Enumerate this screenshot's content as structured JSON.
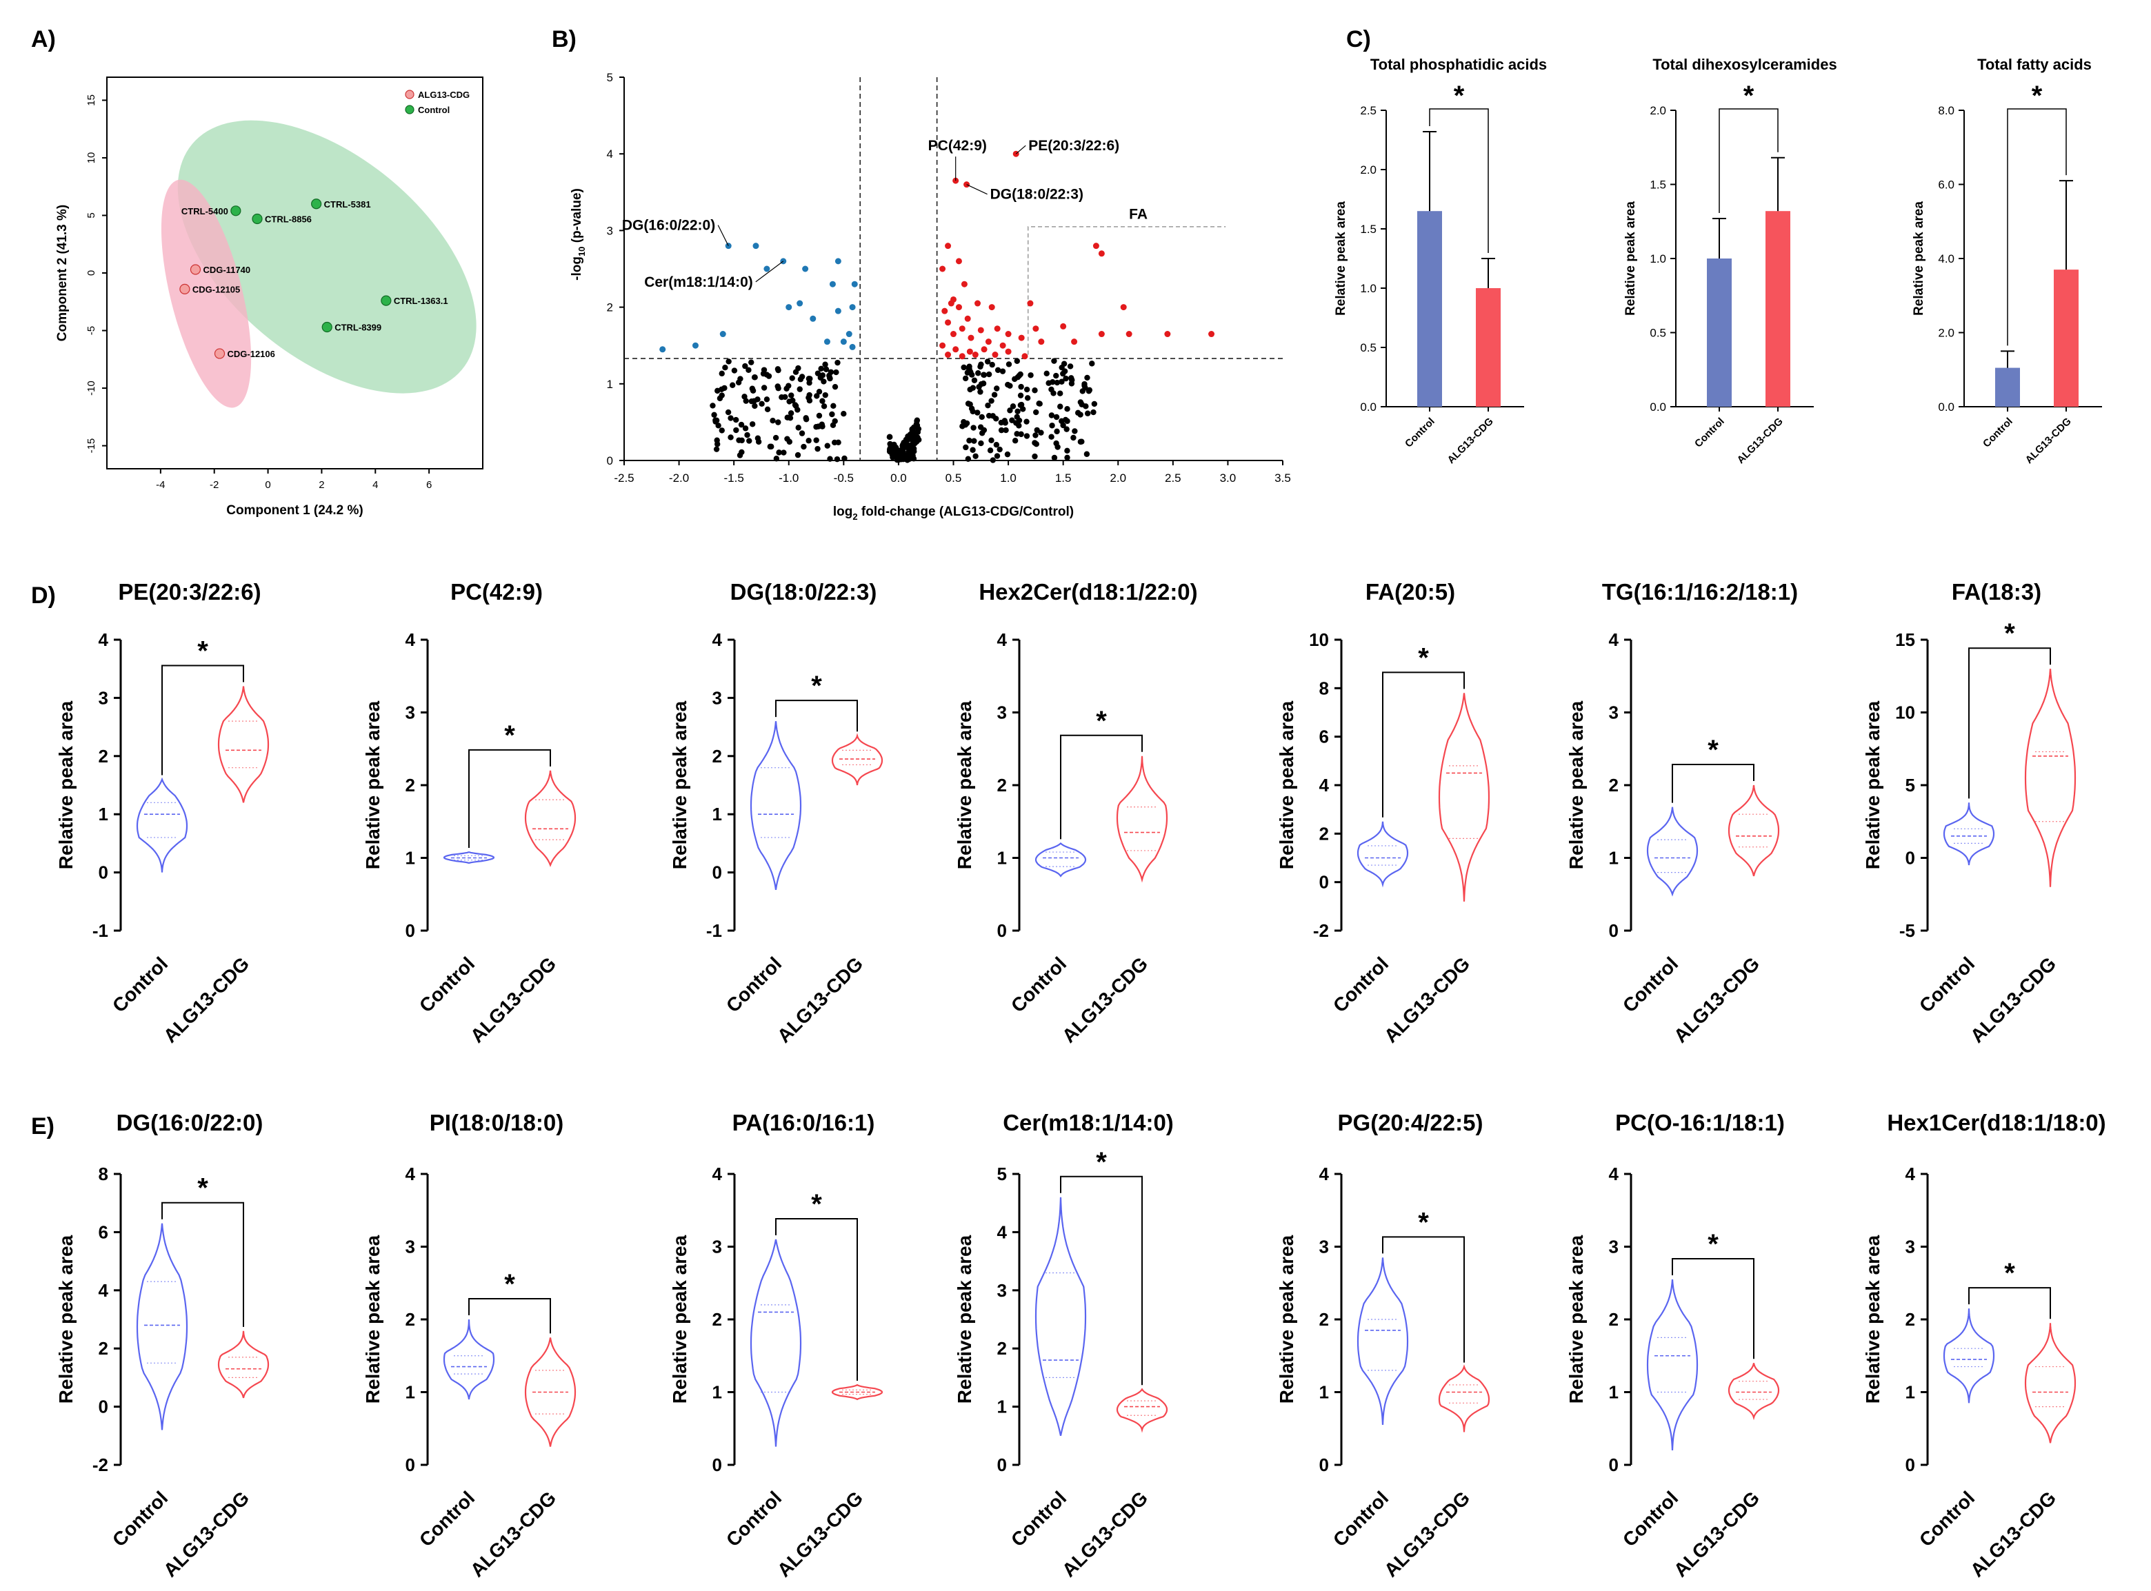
{
  "panels": {
    "A": "A)",
    "B": "B)",
    "C": "C)",
    "D": "D)",
    "E": "E)"
  },
  "colors": {
    "control": "#5a65f0",
    "alg13": "#f5474f",
    "bar_control": "#6a7dc0",
    "bar_alg13": "#f6545c",
    "pca_control_fill": "#a8dcb6",
    "pca_alg13_fill": "#f6b3c4",
    "vol_up": "#e31a1c",
    "vol_down": "#1f78b4"
  },
  "chart_data": [
    {
      "id": "pca",
      "type": "scatter",
      "xlabel": "Component 1 (24.2 %)",
      "ylabel": "Component 2 (41.3 %)",
      "xlim": [
        -6,
        8
      ],
      "ylim": [
        -17,
        17
      ],
      "xticks": [
        "-4",
        "-2",
        "0",
        "2",
        "4",
        "6"
      ],
      "yticks": [
        "15",
        "10",
        "5",
        "0",
        "-5",
        "-10",
        "-15"
      ],
      "legend": [
        "ALG13-CDG",
        "Control"
      ],
      "points": [
        {
          "label": "CTRL-5400",
          "x": -1.2,
          "y": 5.4,
          "group": "Control"
        },
        {
          "label": "CTRL-8856",
          "x": -0.4,
          "y": 4.7,
          "group": "Control"
        },
        {
          "label": "CTRL-5381",
          "x": 1.8,
          "y": 6.0,
          "group": "Control"
        },
        {
          "label": "CTRL-1363.1",
          "x": 4.4,
          "y": -2.4,
          "group": "Control"
        },
        {
          "label": "CTRL-8399",
          "x": 2.2,
          "y": -4.7,
          "group": "Control"
        },
        {
          "label": "CDG-11740",
          "x": -2.7,
          "y": 0.3,
          "group": "ALG13-CDG"
        },
        {
          "label": "CDG-12105",
          "x": -3.1,
          "y": -1.4,
          "group": "ALG13-CDG"
        },
        {
          "label": "CDG-12106",
          "x": -1.8,
          "y": -7.0,
          "group": "ALG13-CDG"
        }
      ]
    },
    {
      "id": "volcano",
      "type": "scatter",
      "xlabel": "log2 fold-change (ALG13-CDG/Control)",
      "ylabel": "-log10 (p-value)",
      "xlabel_main": "log",
      "xlabel_sub": "2",
      "xlabel_rest": " fold-change (ALG13-CDG/Control)",
      "ylabel_pre": "-log",
      "ylabel_sub": "10",
      "ylabel_rest": " (p-value)",
      "xlim": [
        -2.5,
        3.5
      ],
      "ylim": [
        0,
        5
      ],
      "xticks": [
        "-2.5",
        "-2.0",
        "-1.5",
        "-1.0",
        "-0.5",
        "0.0",
        "0.5",
        "1.0",
        "1.5",
        "2.0",
        "2.5",
        "3.0",
        "3.5"
      ],
      "yticks": [
        "0",
        "1",
        "2",
        "3",
        "4",
        "5"
      ],
      "thresholds": {
        "x": [
          -0.35,
          0.35
        ],
        "y": 1.33
      },
      "fa_box_label": "FA",
      "labels": [
        {
          "text": "PE(20:3/22:6)",
          "x": 1.07,
          "y": 4.0
        },
        {
          "text": "PC(42:9)",
          "x": 0.52,
          "y": 3.65
        },
        {
          "text": "DG(18:0/22:3)",
          "x": 0.62,
          "y": 3.6
        },
        {
          "text": "DG(16:0/22:0)",
          "x": -1.55,
          "y": 2.8
        },
        {
          "text": "Cer(m18:1/14:0)",
          "x": -1.05,
          "y": 2.6
        }
      ],
      "up_points": [
        [
          1.07,
          4.0
        ],
        [
          0.52,
          3.65
        ],
        [
          0.62,
          3.6
        ],
        [
          1.8,
          2.8
        ],
        [
          1.85,
          2.7
        ],
        [
          0.45,
          2.8
        ],
        [
          0.55,
          2.6
        ],
        [
          0.6,
          2.3
        ],
        [
          0.4,
          2.5
        ],
        [
          0.5,
          2.1
        ],
        [
          0.42,
          1.95
        ],
        [
          0.48,
          2.05
        ],
        [
          0.55,
          2.0
        ],
        [
          0.63,
          1.85
        ],
        [
          0.72,
          2.05
        ],
        [
          0.85,
          2.0
        ],
        [
          1.2,
          2.05
        ],
        [
          0.45,
          1.8
        ],
        [
          0.5,
          1.65
        ],
        [
          0.58,
          1.72
        ],
        [
          0.66,
          1.6
        ],
        [
          0.75,
          1.7
        ],
        [
          0.82,
          1.55
        ],
        [
          0.9,
          1.72
        ],
        [
          1.0,
          1.65
        ],
        [
          0.95,
          1.5
        ],
        [
          1.12,
          1.6
        ],
        [
          1.25,
          1.72
        ],
        [
          1.3,
          1.55
        ],
        [
          1.5,
          1.75
        ],
        [
          1.6,
          1.55
        ],
        [
          2.1,
          1.65
        ],
        [
          2.45,
          1.65
        ],
        [
          2.85,
          1.65
        ],
        [
          1.85,
          1.65
        ],
        [
          0.4,
          1.5
        ],
        [
          0.52,
          1.45
        ],
        [
          0.65,
          1.42
        ],
        [
          0.78,
          1.45
        ],
        [
          1.0,
          1.42
        ],
        [
          0.88,
          1.38
        ],
        [
          0.45,
          1.38
        ],
        [
          0.58,
          1.36
        ],
        [
          0.7,
          1.38
        ],
        [
          1.15,
          1.36
        ],
        [
          2.05,
          2.0
        ]
      ],
      "down_points": [
        [
          -1.55,
          2.8
        ],
        [
          -1.3,
          2.8
        ],
        [
          -1.05,
          2.6
        ],
        [
          -0.55,
          2.6
        ],
        [
          -1.2,
          2.5
        ],
        [
          -0.6,
          2.3
        ],
        [
          -0.85,
          2.5
        ],
        [
          -0.4,
          2.3
        ],
        [
          -0.9,
          2.05
        ],
        [
          -1.0,
          2.0
        ],
        [
          -0.55,
          1.95
        ],
        [
          -0.42,
          2.0
        ],
        [
          -0.78,
          1.85
        ],
        [
          -0.45,
          1.65
        ],
        [
          -1.6,
          1.65
        ],
        [
          -0.5,
          1.55
        ],
        [
          -2.15,
          1.45
        ],
        [
          -1.85,
          1.5
        ],
        [
          -0.65,
          1.55
        ],
        [
          -0.42,
          1.48
        ]
      ]
    },
    {
      "id": "bars",
      "type": "bar",
      "categories": [
        "Control",
        "ALG13-CDG"
      ],
      "ylabel": "Relative peak area",
      "charts": [
        {
          "title": "Total phosphatidic acids",
          "values": [
            1.65,
            1.0
          ],
          "errors": [
            0.67,
            0.25
          ],
          "ylim": [
            0,
            2.5
          ],
          "yticks": [
            "0.0",
            "0.5",
            "1.0",
            "1.5",
            "2.0",
            "2.5"
          ],
          "sig": "*"
        },
        {
          "title": "Total dihexosylceramides",
          "values": [
            1.0,
            1.32
          ],
          "errors": [
            0.27,
            0.36
          ],
          "ylim": [
            0,
            2.0
          ],
          "yticks": [
            "0.0",
            "0.5",
            "1.0",
            "1.5",
            "2.0"
          ],
          "sig": "*"
        },
        {
          "title": "Total fatty acids",
          "values": [
            1.05,
            3.7
          ],
          "errors": [
            0.45,
            2.4
          ],
          "ylim": [
            0,
            8.0
          ],
          "yticks": [
            "0.0",
            "2.0",
            "4.0",
            "6.0",
            "8.0"
          ],
          "sig": "*"
        }
      ]
    },
    {
      "id": "violins",
      "type": "violin",
      "categories": [
        "Control",
        "ALG13-CDG"
      ],
      "ylabel": "Relative peak area",
      "rows": [
        [
          {
            "title": "PE(20:3/22:6)",
            "ylim": [
              -1,
              4
            ],
            "yticks": [
              "-1",
              "0",
              "1",
              "2",
              "3",
              "4"
            ],
            "sig": "*",
            "ctrl": {
              "min": 0.0,
              "max": 1.6,
              "median": 1.0,
              "q1": 0.6,
              "q3": 1.2
            },
            "alg": {
              "min": 1.2,
              "max": 3.2,
              "median": 2.1,
              "q1": 1.8,
              "q3": 2.6
            }
          },
          {
            "title": "PC(42:9)",
            "ylim": [
              0,
              4
            ],
            "yticks": [
              "0",
              "1",
              "2",
              "3",
              "4"
            ],
            "sig": "*",
            "ctrl": {
              "min": 0.93,
              "max": 1.08,
              "median": 1.0,
              "q1": 0.97,
              "q3": 1.03
            },
            "alg": {
              "min": 0.9,
              "max": 2.2,
              "median": 1.4,
              "q1": 1.25,
              "q3": 1.8
            }
          },
          {
            "title": "DG(18:0/22:3)",
            "ylim": [
              -1,
              4
            ],
            "yticks": [
              "-1",
              "0",
              "1",
              "2",
              "3",
              "4"
            ],
            "sig": "*",
            "ctrl": {
              "min": -0.3,
              "max": 2.6,
              "median": 1.0,
              "q1": 0.6,
              "q3": 1.8
            },
            "alg": {
              "min": 1.5,
              "max": 2.35,
              "median": 1.95,
              "q1": 1.85,
              "q3": 2.1
            }
          },
          {
            "title": "Hex2Cer(d18:1/22:0)",
            "ylim": [
              0,
              4
            ],
            "yticks": [
              "0",
              "1",
              "2",
              "3",
              "4"
            ],
            "sig": "*",
            "ctrl": {
              "min": 0.75,
              "max": 1.2,
              "median": 1.0,
              "q1": 0.88,
              "q3": 1.08
            },
            "alg": {
              "min": 0.7,
              "max": 2.4,
              "median": 1.35,
              "q1": 1.1,
              "q3": 1.7
            }
          },
          {
            "title": "FA(20:5)",
            "ylim": [
              -2,
              10
            ],
            "yticks": [
              "-2",
              "0",
              "2",
              "4",
              "6",
              "8",
              "10"
            ],
            "sig": "*",
            "ctrl": {
              "min": -0.1,
              "max": 2.5,
              "median": 1.0,
              "q1": 0.7,
              "q3": 1.5
            },
            "alg": {
              "min": -0.8,
              "max": 7.8,
              "median": 4.5,
              "q1": 1.8,
              "q3": 4.8
            }
          },
          {
            "title": "TG(16:1/16:2/18:1)",
            "ylim": [
              0,
              4
            ],
            "yticks": [
              "0",
              "1",
              "2",
              "3",
              "4"
            ],
            "sig": "*",
            "ctrl": {
              "min": 0.5,
              "max": 1.7,
              "median": 1.0,
              "q1": 0.8,
              "q3": 1.25
            },
            "alg": {
              "min": 0.75,
              "max": 2.0,
              "median": 1.3,
              "q1": 1.15,
              "q3": 1.6
            }
          },
          {
            "title": "FA(18:3)",
            "ylim": [
              -5,
              15
            ],
            "yticks": [
              "-5",
              "0",
              "5",
              "10",
              "15"
            ],
            "sig": "*",
            "ctrl": {
              "min": -0.5,
              "max": 3.8,
              "median": 1.5,
              "q1": 1.0,
              "q3": 2.0
            },
            "alg": {
              "min": -2.0,
              "max": 13.0,
              "median": 7.0,
              "q1": 2.5,
              "q3": 7.3
            }
          }
        ],
        [
          {
            "title": "DG(16:0/22:0)",
            "ylim": [
              -2,
              8
            ],
            "yticks": [
              "-2",
              "0",
              "2",
              "4",
              "6",
              "8"
            ],
            "sig": "*",
            "ctrl": {
              "min": -0.8,
              "max": 6.3,
              "median": 2.8,
              "q1": 1.5,
              "q3": 4.3
            },
            "alg": {
              "min": 0.3,
              "max": 2.6,
              "median": 1.3,
              "q1": 1.0,
              "q3": 1.7
            }
          },
          {
            "title": "PI(18:0/18:0)",
            "ylim": [
              0,
              4
            ],
            "yticks": [
              "0",
              "1",
              "2",
              "3",
              "4"
            ],
            "sig": "*",
            "ctrl": {
              "min": 0.9,
              "max": 2.0,
              "median": 1.35,
              "q1": 1.25,
              "q3": 1.5
            },
            "alg": {
              "min": 0.25,
              "max": 1.75,
              "median": 1.0,
              "q1": 0.7,
              "q3": 1.3
            }
          },
          {
            "title": "PA(16:0/16:1)",
            "ylim": [
              0,
              4
            ],
            "yticks": [
              "0",
              "1",
              "2",
              "3",
              "4"
            ],
            "sig": "*",
            "ctrl": {
              "min": 0.25,
              "max": 3.1,
              "median": 2.1,
              "q1": 1.0,
              "q3": 2.2
            },
            "alg": {
              "min": 0.9,
              "max": 1.1,
              "median": 1.0,
              "q1": 0.97,
              "q3": 1.03
            }
          },
          {
            "title": "Cer(m18:1/14:0)",
            "ylim": [
              0,
              5
            ],
            "yticks": [
              "0",
              "1",
              "2",
              "3",
              "4",
              "5"
            ],
            "sig": "*",
            "ctrl": {
              "min": 0.5,
              "max": 4.6,
              "median": 1.8,
              "q1": 1.5,
              "q3": 3.3
            },
            "alg": {
              "min": 0.6,
              "max": 1.3,
              "median": 1.0,
              "q1": 0.85,
              "q3": 1.1
            }
          },
          {
            "title": "PG(20:4/22:5)",
            "ylim": [
              0,
              4
            ],
            "yticks": [
              "0",
              "1",
              "2",
              "3",
              "4"
            ],
            "sig": "*",
            "ctrl": {
              "min": 0.55,
              "max": 2.85,
              "median": 1.85,
              "q1": 1.3,
              "q3": 2.0
            },
            "alg": {
              "min": 0.45,
              "max": 1.35,
              "median": 1.0,
              "q1": 0.85,
              "q3": 1.1
            }
          },
          {
            "title": "PC(O-16:1/18:1)",
            "ylim": [
              0,
              4
            ],
            "yticks": [
              "0",
              "1",
              "2",
              "3",
              "4"
            ],
            "sig": "*",
            "ctrl": {
              "min": 0.2,
              "max": 2.55,
              "median": 1.5,
              "q1": 1.0,
              "q3": 1.75
            },
            "alg": {
              "min": 0.65,
              "max": 1.4,
              "median": 1.0,
              "q1": 0.9,
              "q3": 1.15
            }
          },
          {
            "title": "Hex1Cer(d18:1/18:0)",
            "ylim": [
              0,
              4
            ],
            "yticks": [
              "0",
              "1",
              "2",
              "3",
              "4"
            ],
            "sig": "*",
            "ctrl": {
              "min": 0.85,
              "max": 2.15,
              "median": 1.45,
              "q1": 1.35,
              "q3": 1.6
            },
            "alg": {
              "min": 0.3,
              "max": 1.95,
              "median": 1.0,
              "q1": 0.8,
              "q3": 1.35
            }
          }
        ]
      ]
    }
  ]
}
